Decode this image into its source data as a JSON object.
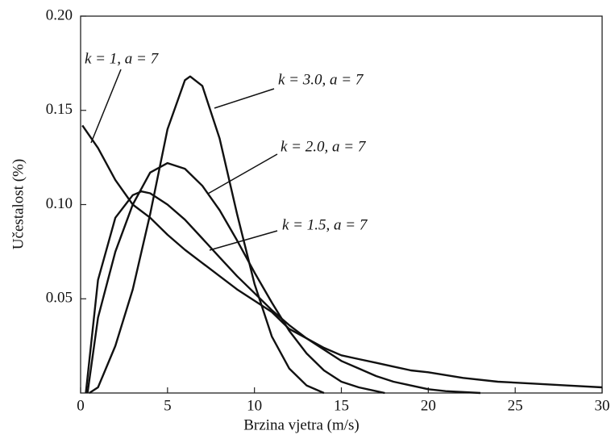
{
  "chart_data": {
    "type": "line",
    "xlabel": "Brzina vjetra (m/s)",
    "ylabel": "Učestalost (%)",
    "xlim": [
      0,
      30
    ],
    "ylim": [
      0,
      0.2
    ],
    "xticks": [
      0,
      5,
      10,
      15,
      20,
      25,
      30
    ],
    "yticks": [
      0.05,
      {
        "value": 0.1,
        "label": "0.10"
      },
      0.15,
      {
        "value": 0.2,
        "label": "0.20"
      }
    ],
    "color": "#111111",
    "series": [
      {
        "name": "k = 1, a = 7",
        "x": [
          0.1,
          1,
          2,
          3,
          4,
          5,
          6,
          7,
          8,
          9,
          10,
          11,
          12,
          13,
          14,
          15,
          16,
          17,
          18,
          19,
          20,
          22,
          24,
          26,
          28,
          30
        ],
        "values": [
          0.142,
          0.13,
          0.113,
          0.1,
          0.093,
          0.084,
          0.076,
          0.069,
          0.062,
          0.055,
          0.049,
          0.043,
          0.034,
          0.029,
          0.024,
          0.02,
          0.018,
          0.016,
          0.014,
          0.012,
          0.011,
          0.008,
          0.006,
          0.005,
          0.004,
          0.003
        ]
      },
      {
        "name": "k = 3.0, a = 7",
        "x": [
          0.5,
          1,
          2,
          3,
          4,
          5,
          6,
          6.3,
          7,
          8,
          9,
          10,
          11,
          12,
          13,
          14
        ],
        "values": [
          0,
          0.003,
          0.025,
          0.055,
          0.095,
          0.14,
          0.166,
          0.168,
          0.163,
          0.135,
          0.095,
          0.058,
          0.03,
          0.013,
          0.004,
          0
        ]
      },
      {
        "name": "k = 2.0, a = 7",
        "x": [
          0.4,
          1,
          2,
          3,
          4,
          5,
          6,
          7,
          8,
          9,
          10,
          11,
          12,
          13,
          14,
          15,
          16,
          17,
          17.5
        ],
        "values": [
          0,
          0.04,
          0.075,
          0.1,
          0.117,
          0.122,
          0.119,
          0.11,
          0.097,
          0.081,
          0.064,
          0.048,
          0.033,
          0.021,
          0.012,
          0.006,
          0.003,
          0.001,
          0
        ]
      },
      {
        "name": "k = 1.5, a = 7",
        "x": [
          0.3,
          1,
          2,
          3,
          3.5,
          4,
          5,
          6,
          7,
          8,
          9,
          10,
          11,
          12,
          13,
          14,
          15,
          16,
          17,
          18,
          19,
          20,
          21,
          22,
          23
        ],
        "values": [
          0,
          0.06,
          0.093,
          0.105,
          0.107,
          0.106,
          0.1,
          0.092,
          0.082,
          0.072,
          0.062,
          0.053,
          0.044,
          0.036,
          0.029,
          0.023,
          0.017,
          0.013,
          0.009,
          0.006,
          0.004,
          0.002,
          0.001,
          0.0005,
          0
        ]
      }
    ]
  }
}
